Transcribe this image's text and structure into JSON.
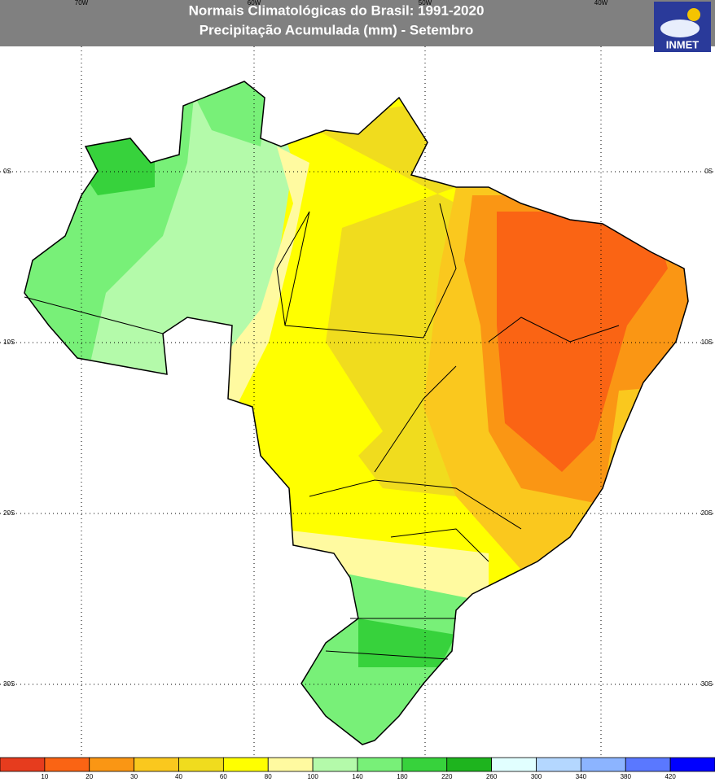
{
  "header": {
    "title": "Normais Climatológicas do Brasil: 1991-2020",
    "subtitle": "Precipitação Acumulada (mm) - Setembro"
  },
  "logo": {
    "label": "INMET"
  },
  "longitude_labels": [
    "70W",
    "60W",
    "50W",
    "40W"
  ],
  "latitude_labels": [
    "0S",
    "10S",
    "20S",
    "30S"
  ],
  "colorbar": {
    "colors": [
      "#e63c1e",
      "#fa6414",
      "#fa9614",
      "#fac81e",
      "#f0dc1e",
      "#ffff00",
      "#fffaa0",
      "#b4faaa",
      "#78f078",
      "#37d23c",
      "#1eb41e",
      "#e1ffff",
      "#b4d7ff",
      "#8cb4ff",
      "#5a78ff",
      "#0000ff"
    ],
    "labels": [
      "10",
      "20",
      "30",
      "40",
      "60",
      "80",
      "100",
      "140",
      "180",
      "220",
      "260",
      "300",
      "340",
      "380",
      "420"
    ]
  }
}
